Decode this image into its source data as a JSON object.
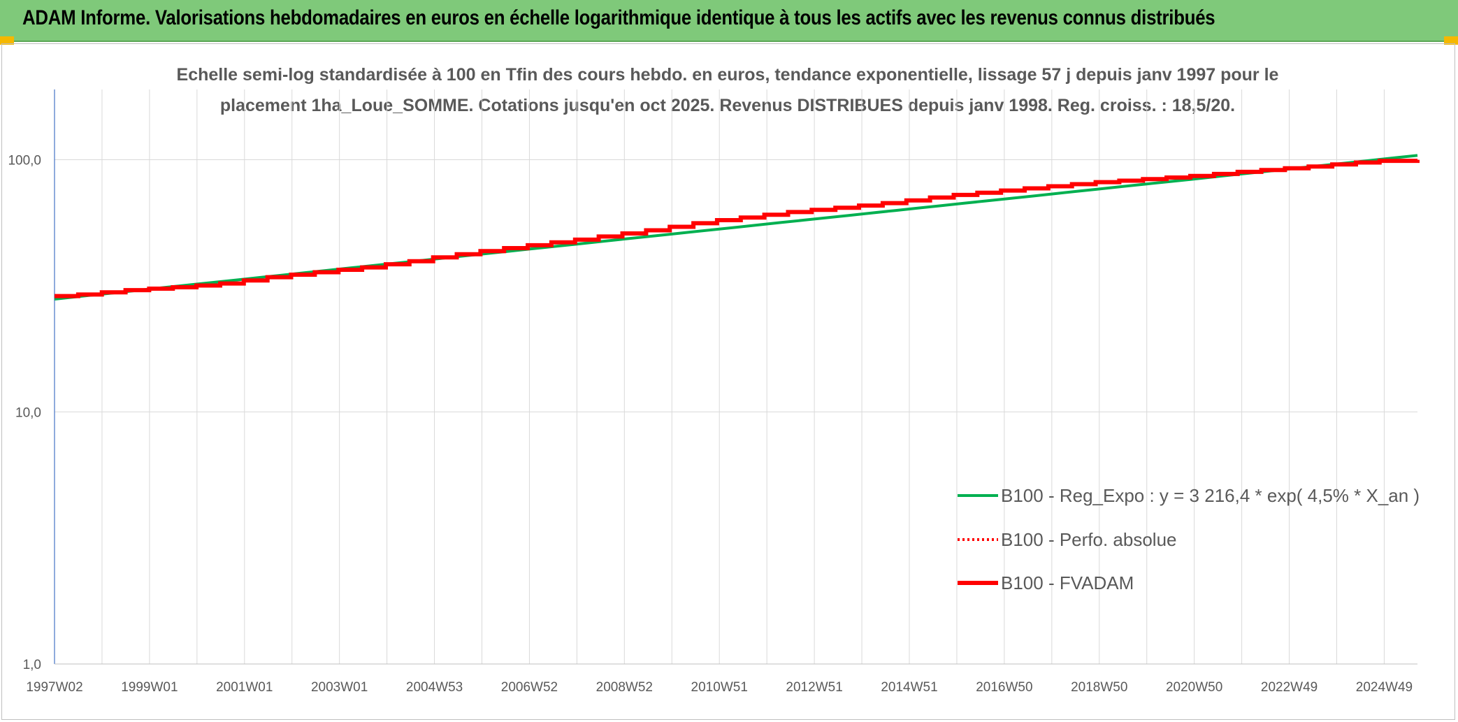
{
  "header": {
    "title": "ADAM Informe. Valorisations hebdomadaires en euros en échelle logarithmique identique à tous les actifs avec les revenus connus distribués"
  },
  "colors": {
    "header_bg": "#7fc97a",
    "corner_accent": "#f5b800",
    "reg_expo": "#00b050",
    "perfo": "#ff0000",
    "fvadam": "#ff0000"
  },
  "chart_data": {
    "type": "line",
    "title_lines": [
      "Echelle semi-log standardisée à 100 en Tfin des cours hebdo. en euros, tendance exponentielle, lissage 57 j depuis janv 1997 pour le",
      "placement 1ha_Loue_SOMME. Cotations jusqu'en oct 2025. Revenus DISTRIBUES depuis janv 1998. Reg. croiss. : 18,5/20."
    ],
    "y_scale": "log",
    "ylim": [
      1,
      190
    ],
    "y_ticks": [
      "1,0",
      "10,0",
      "100,0"
    ],
    "x_tick_labels": [
      "1997W02",
      "1999W01",
      "2001W01",
      "2003W01",
      "2004W53",
      "2006W52",
      "2008W52",
      "2010W51",
      "2012W51",
      "2014W51",
      "2016W50",
      "2018W50",
      "2020W50",
      "2022W49",
      "2024W49"
    ],
    "x_start": 1997.0,
    "x_end": 2025.8,
    "grid": true,
    "legend_position": "bottom-right",
    "series": [
      {
        "name": "B100 - Reg_Expo : y = 3 216,4 * exp( 4,5% *  X_an )",
        "style": "solid-green",
        "x": [
          1997.0,
          2025.8
        ],
        "values": [
          28.0,
          104.0
        ]
      },
      {
        "name": "B100 - Perfo. absolue",
        "style": "dotted-red",
        "x": [
          1997.0,
          1997.5,
          1998.0,
          1998.5,
          1999.0,
          1999.5,
          2000.0,
          2000.5,
          2001.0,
          2001.5,
          2002.0,
          2002.5,
          2003.0,
          2003.5,
          2004.0,
          2004.5,
          2005.0,
          2005.5,
          2006.0,
          2006.5,
          2007.0,
          2007.5,
          2008.0,
          2008.5,
          2009.0,
          2009.5,
          2010.0,
          2010.5,
          2011.0,
          2011.5,
          2012.0,
          2012.5,
          2013.0,
          2013.5,
          2014.0,
          2014.5,
          2015.0,
          2015.5,
          2016.0,
          2016.5,
          2017.0,
          2017.5,
          2018.0,
          2018.5,
          2019.0,
          2019.5,
          2020.0,
          2020.5,
          2021.0,
          2021.5,
          2022.0,
          2022.5,
          2023.0,
          2023.5,
          2024.0,
          2024.5,
          2025.0,
          2025.8
        ],
        "values": [
          28.8,
          29.2,
          29.8,
          30.4,
          30.8,
          31.2,
          31.7,
          32.3,
          33.2,
          34.2,
          35.0,
          35.8,
          36.6,
          37.4,
          38.5,
          39.6,
          41.0,
          42.2,
          43.4,
          44.6,
          45.8,
          47.0,
          48.2,
          49.6,
          51.0,
          52.5,
          54.2,
          56.0,
          57.6,
          59.0,
          60.5,
          62.0,
          63.3,
          64.5,
          65.8,
          67.3,
          69.0,
          70.8,
          72.5,
          74.0,
          75.5,
          77.0,
          78.5,
          80.0,
          81.5,
          82.6,
          83.8,
          85.0,
          86.2,
          87.8,
          89.5,
          91.0,
          92.5,
          94.0,
          95.8,
          97.5,
          99.0,
          100.0
        ]
      },
      {
        "name": "B100 - FVADAM",
        "style": "thick-red",
        "x": [
          1997.0,
          1997.5,
          1998.0,
          1998.5,
          1999.0,
          1999.5,
          2000.0,
          2000.5,
          2001.0,
          2001.5,
          2002.0,
          2002.5,
          2003.0,
          2003.5,
          2004.0,
          2004.5,
          2005.0,
          2005.5,
          2006.0,
          2006.5,
          2007.0,
          2007.5,
          2008.0,
          2008.5,
          2009.0,
          2009.5,
          2010.0,
          2010.5,
          2011.0,
          2011.5,
          2012.0,
          2012.5,
          2013.0,
          2013.5,
          2014.0,
          2014.5,
          2015.0,
          2015.5,
          2016.0,
          2016.5,
          2017.0,
          2017.5,
          2018.0,
          2018.5,
          2019.0,
          2019.5,
          2020.0,
          2020.5,
          2021.0,
          2021.5,
          2022.0,
          2022.5,
          2023.0,
          2023.5,
          2024.0,
          2024.5,
          2025.0,
          2025.8
        ],
        "values": [
          28.8,
          29.2,
          29.8,
          30.4,
          30.8,
          31.2,
          31.7,
          32.3,
          33.2,
          34.2,
          35.0,
          35.8,
          36.6,
          37.4,
          38.5,
          39.6,
          41.0,
          42.2,
          43.4,
          44.6,
          45.8,
          47.0,
          48.2,
          49.6,
          51.0,
          52.5,
          54.2,
          56.0,
          57.6,
          59.0,
          60.5,
          62.0,
          63.3,
          64.5,
          65.8,
          67.3,
          69.0,
          70.8,
          72.5,
          74.0,
          75.5,
          77.0,
          78.5,
          80.0,
          81.5,
          82.6,
          83.8,
          85.0,
          86.2,
          87.8,
          89.5,
          91.0,
          92.5,
          94.0,
          95.8,
          97.5,
          99.0,
          100.0
        ]
      }
    ]
  }
}
